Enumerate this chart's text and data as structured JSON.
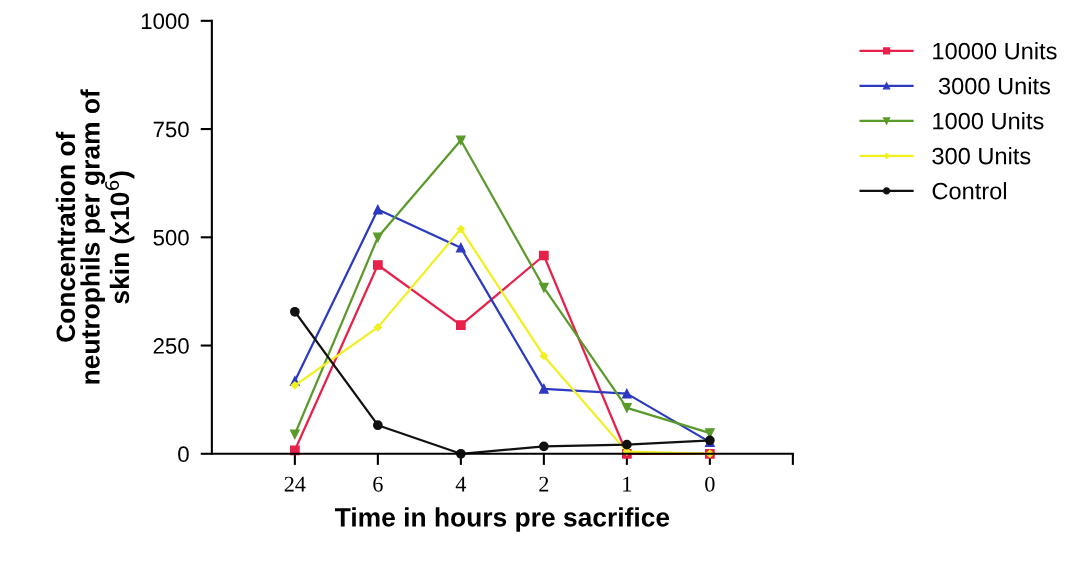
{
  "chart_data": {
    "type": "line",
    "xlabel": "Time in hours pre sacrifice",
    "ylabel": "Concentration of\nneutrophils per gram of\nskin (x10$^{6}$)",
    "categories": [
      "24",
      "6",
      "4",
      "2",
      "1",
      "0"
    ],
    "series": [
      {
        "name": "10000 Units",
        "color": "#e8204a",
        "marker": "square",
        "values": [
          8,
          436,
          297,
          458,
          0,
          0
        ]
      },
      {
        "name": " 3000 Units",
        "color": "#2b3ac0",
        "marker": "triangle",
        "values": [
          168,
          564,
          476,
          150,
          139,
          27
        ]
      },
      {
        "name": "1000 Units",
        "color": "#5a9a2a",
        "marker": "triangle_down",
        "values": [
          45,
          500,
          724,
          384,
          106,
          48
        ]
      },
      {
        "name": "300 Units",
        "color": "#f0f020",
        "marker": "diamond",
        "values": [
          158,
          292,
          519,
          226,
          5,
          0
        ]
      },
      {
        "name": "Control",
        "color": "#111111",
        "marker": "circle",
        "values": [
          328,
          66,
          0,
          17,
          21,
          31
        ]
      }
    ],
    "ylim": [
      0,
      1000
    ],
    "yticks": [
      0,
      250,
      500,
      750,
      1000
    ],
    "grid": false,
    "legend": "top right",
    "line_style": "solid"
  }
}
